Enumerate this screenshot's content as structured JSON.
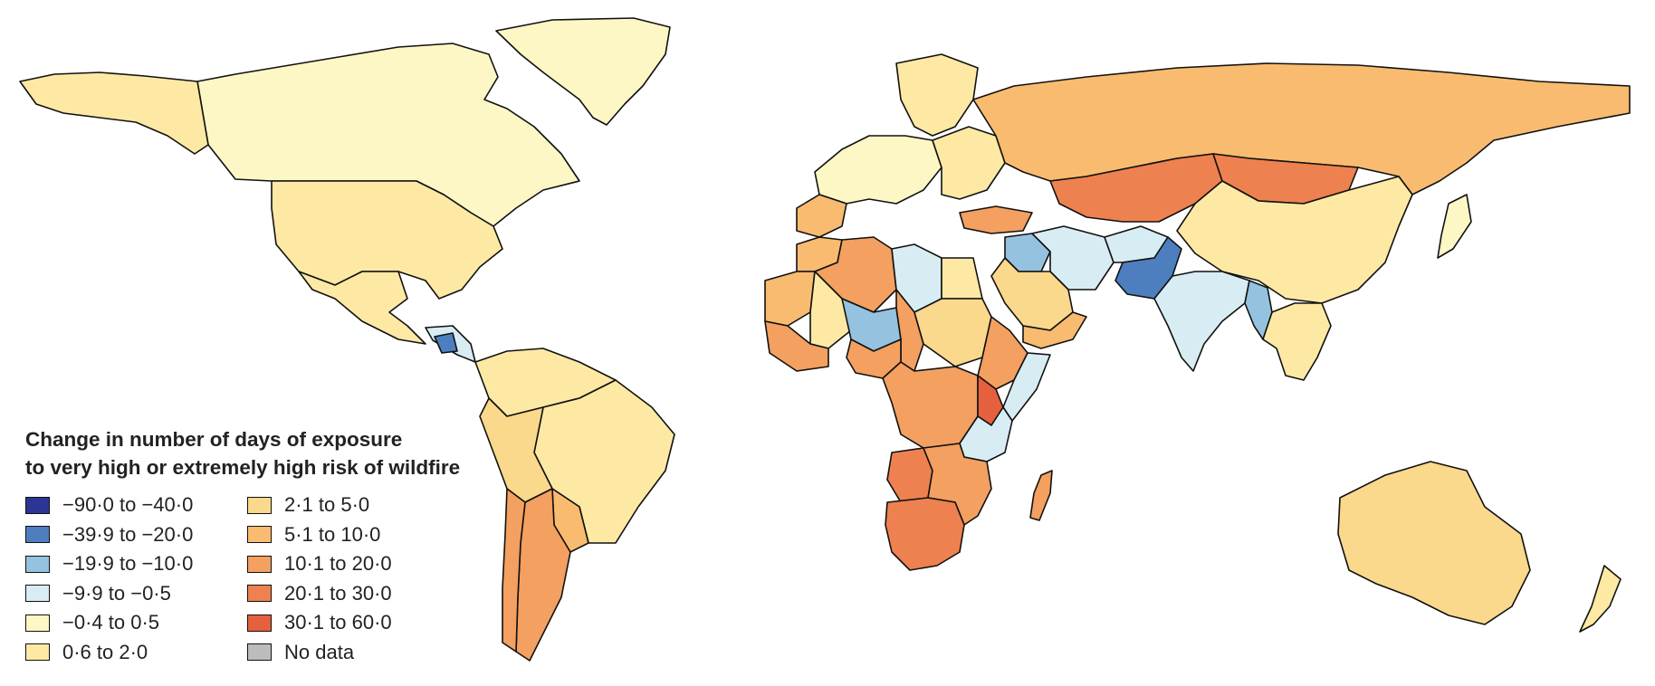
{
  "map": {
    "legend": {
      "title_line1": "Change in number of days of exposure",
      "title_line2": "to very high or extremely high risk of wildfire",
      "bins": [
        {
          "label": "−90·0 to −40·0",
          "color": "#2b3594"
        },
        {
          "label": "−39·9 to −20·0",
          "color": "#4d7fbf"
        },
        {
          "label": "−19·9 to −10·0",
          "color": "#94c2df"
        },
        {
          "label": "−9·9 to −0·5",
          "color": "#d8ecf3"
        },
        {
          "label": "−0·4 to 0·5",
          "color": "#fdf7c6"
        },
        {
          "label": "0·6 to 2·0",
          "color": "#fde9a3"
        },
        {
          "label": "2·1 to 5·0",
          "color": "#fad88c"
        },
        {
          "label": "5·1 to 10·0",
          "color": "#f8bb70"
        },
        {
          "label": "10·1 to 20·0",
          "color": "#f3a060"
        },
        {
          "label": "20·1 to 30·0",
          "color": "#ee8150"
        },
        {
          "label": "30·1 to 60·0",
          "color": "#e5603d"
        },
        {
          "label": "No data",
          "color": "#bcbcbc"
        }
      ]
    },
    "regions": [
      {
        "name": "Alaska",
        "bin": "0·6 to 2·0"
      },
      {
        "name": "Canada",
        "bin": "−0·4 to 0·5"
      },
      {
        "name": "Greenland",
        "bin": "−0·4 to 0·5"
      },
      {
        "name": "United States",
        "bin": "0·6 to 2·0"
      },
      {
        "name": "Mexico",
        "bin": "0·6 to 2·0"
      },
      {
        "name": "Central America",
        "bin": "−9·9 to −0·5"
      },
      {
        "name": "Nicaragua",
        "bin": "−39·9 to −20·0"
      },
      {
        "name": "South America north",
        "bin": "0·6 to 2·0"
      },
      {
        "name": "Brazil",
        "bin": "0·6 to 2·0"
      },
      {
        "name": "Peru and Bolivia",
        "bin": "2·1 to 5·0"
      },
      {
        "name": "Chile",
        "bin": "10·1 to 20·0"
      },
      {
        "name": "Argentina",
        "bin": "10·1 to 20·0"
      },
      {
        "name": "Paraguay and Uruguay",
        "bin": "5·1 to 10·0"
      },
      {
        "name": "Western Europe",
        "bin": "−0·4 to 0·5"
      },
      {
        "name": "Scandinavia",
        "bin": "0·6 to 2·0"
      },
      {
        "name": "Iberia",
        "bin": "5·1 to 10·0"
      },
      {
        "name": "Eastern Europe",
        "bin": "0·6 to 2·0"
      },
      {
        "name": "Russia",
        "bin": "5·1 to 10·0"
      },
      {
        "name": "Kazakhstan",
        "bin": "20·1 to 30·0"
      },
      {
        "name": "Mongolia",
        "bin": "20·1 to 30·0"
      },
      {
        "name": "China",
        "bin": "0·6 to 2·0"
      },
      {
        "name": "Turkey",
        "bin": "10·1 to 20·0"
      },
      {
        "name": "Iraq",
        "bin": "−19·9 to −10·0"
      },
      {
        "name": "Iran",
        "bin": "−9·9 to −0·5"
      },
      {
        "name": "Afghanistan",
        "bin": "−9·9 to −0·5"
      },
      {
        "name": "Pakistan",
        "bin": "−39·9 to −20·0"
      },
      {
        "name": "India",
        "bin": "−9·9 to −0·5"
      },
      {
        "name": "Myanmar",
        "bin": "−19·9 to −10·0"
      },
      {
        "name": "Saudi Arabia",
        "bin": "2·1 to 5·0"
      },
      {
        "name": "Yemen and Oman",
        "bin": "5·1 to 10·0"
      },
      {
        "name": "Southeast Asia",
        "bin": "0·6 to 2·0"
      },
      {
        "name": "Japan",
        "bin": "−0·4 to 0·5"
      },
      {
        "name": "Australia",
        "bin": "2·1 to 5·0"
      },
      {
        "name": "New Zealand",
        "bin": "0·6 to 2·0"
      },
      {
        "name": "Morocco",
        "bin": "5·1 to 10·0"
      },
      {
        "name": "Algeria",
        "bin": "10·1 to 20·0"
      },
      {
        "name": "Libya",
        "bin": "−9·9 to −0·5"
      },
      {
        "name": "Egypt",
        "bin": "0·6 to 2·0"
      },
      {
        "name": "Mauritania",
        "bin": "5·1 to 10·0"
      },
      {
        "name": "Mali",
        "bin": "0·6 to 2·0"
      },
      {
        "name": "Niger",
        "bin": "−19·9 to −10·0"
      },
      {
        "name": "Chad",
        "bin": "10·1 to 20·0"
      },
      {
        "name": "Sudan",
        "bin": "2·1 to 5·0"
      },
      {
        "name": "Ethiopia",
        "bin": "10·1 to 20·0"
      },
      {
        "name": "Somalia",
        "bin": "−9·9 to −0·5"
      },
      {
        "name": "West Africa coast",
        "bin": "10·1 to 20·0"
      },
      {
        "name": "Nigeria",
        "bin": "10·1 to 20·0"
      },
      {
        "name": "Central Africa",
        "bin": "10·1 to 20·0"
      },
      {
        "name": "Kenya",
        "bin": "30·1 to 60·0"
      },
      {
        "name": "Tanzania",
        "bin": "−9·9 to −0·5"
      },
      {
        "name": "Angola",
        "bin": "20·1 to 30·0"
      },
      {
        "name": "Zambia and Mozambique",
        "bin": "10·1 to 20·0"
      },
      {
        "name": "Southern Africa",
        "bin": "20·1 to 30·0"
      },
      {
        "name": "Madagascar",
        "bin": "10·1 to 20·0"
      }
    ]
  }
}
